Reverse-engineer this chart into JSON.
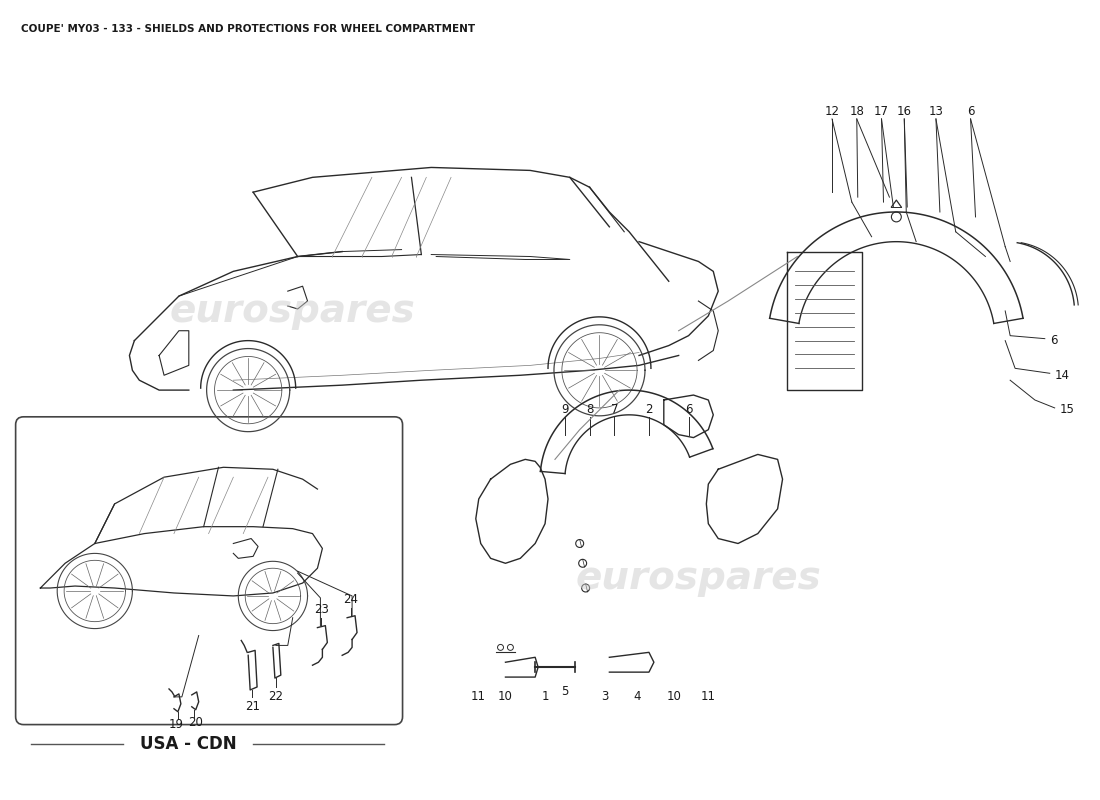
{
  "title": "COUPE' MY03 - 133 - SHIELDS AND PROTECTIONS FOR WHEEL COMPARTMENT",
  "title_fontsize": 7.5,
  "title_color": "#1a1a1a",
  "background_color": "#ffffff",
  "watermark_text": "eurospares",
  "usa_cdn_label": "USA - CDN",
  "figsize": [
    11.0,
    8.0
  ],
  "dpi": 100,
  "line_color": "#2a2a2a",
  "label_fontsize": 8.5
}
